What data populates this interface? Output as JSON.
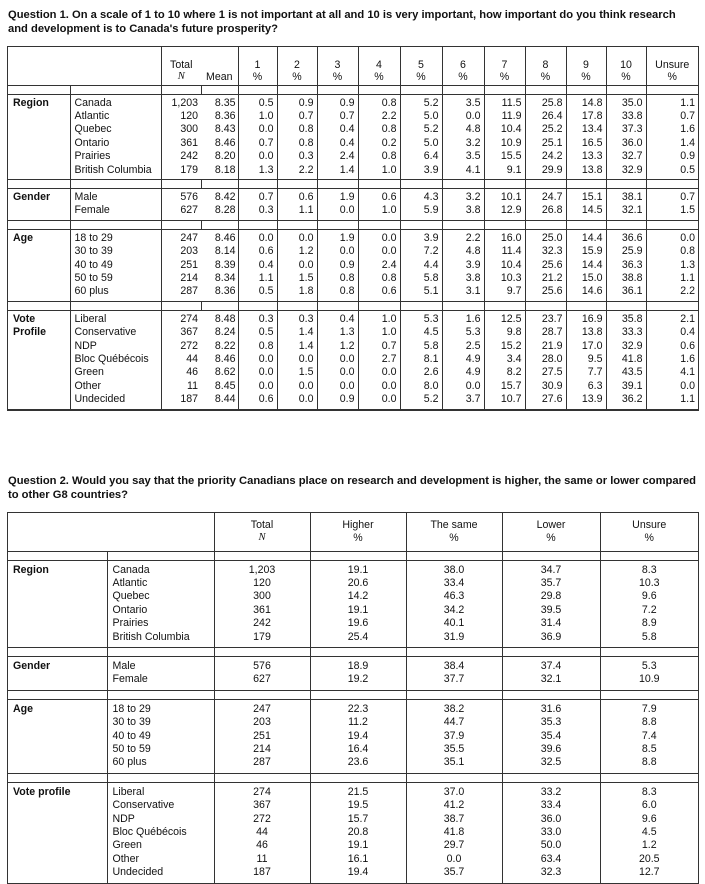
{
  "q1": {
    "title": "Question 1. On a scale of 1 to 10 where 1 is not important at all and 10 is very important, how important do you think research and development is to Canada's future prosperity?",
    "headers": [
      {
        "top": "Total",
        "sub": "N"
      },
      {
        "top": "",
        "sub": "Mean"
      },
      {
        "top": "1",
        "sub": "%"
      },
      {
        "top": "2",
        "sub": "%"
      },
      {
        "top": "3",
        "sub": "%"
      },
      {
        "top": "4",
        "sub": "%"
      },
      {
        "top": "5",
        "sub": "%"
      },
      {
        "top": "6",
        "sub": "%"
      },
      {
        "top": "7",
        "sub": "%"
      },
      {
        "top": "8",
        "sub": "%"
      },
      {
        "top": "9",
        "sub": "%"
      },
      {
        "top": "10",
        "sub": "%"
      },
      {
        "top": "Unsure",
        "sub": "%"
      }
    ],
    "groups": [
      {
        "category": "Region",
        "labels": [
          "Canada",
          "Atlantic",
          "Quebec",
          "Ontario",
          "Prairies",
          "British Columbia"
        ],
        "columns": [
          [
            "1,203",
            "120",
            "300",
            "361",
            "242",
            "179"
          ],
          [
            "8.35",
            "8.36",
            "8.43",
            "8.46",
            "8.20",
            "8.18"
          ],
          [
            "0.5",
            "1.0",
            "0.0",
            "0.7",
            "0.0",
            "1.3"
          ],
          [
            "0.9",
            "0.7",
            "0.8",
            "0.8",
            "0.3",
            "2.2"
          ],
          [
            "0.9",
            "0.7",
            "0.4",
            "0.4",
            "2.4",
            "1.4"
          ],
          [
            "0.8",
            "2.2",
            "0.8",
            "0.2",
            "0.8",
            "1.0"
          ],
          [
            "5.2",
            "5.0",
            "5.2",
            "5.0",
            "6.4",
            "3.9"
          ],
          [
            "3.5",
            "0.0",
            "4.8",
            "3.2",
            "3.5",
            "4.1"
          ],
          [
            "11.5",
            "11.9",
            "10.4",
            "10.9",
            "15.5",
            "9.1"
          ],
          [
            "25.8",
            "26.4",
            "25.2",
            "25.1",
            "24.2",
            "29.9"
          ],
          [
            "14.8",
            "17.8",
            "13.4",
            "16.5",
            "13.3",
            "13.8"
          ],
          [
            "35.0",
            "33.8",
            "37.3",
            "36.0",
            "32.7",
            "32.9"
          ],
          [
            "1.1",
            "0.7",
            "1.6",
            "1.4",
            "0.9",
            "0.5"
          ]
        ]
      },
      {
        "category": "Gender",
        "labels": [
          "Male",
          "Female"
        ],
        "columns": [
          [
            "576",
            "627"
          ],
          [
            "8.42",
            "8.28"
          ],
          [
            "0.7",
            "0.3"
          ],
          [
            "0.6",
            "1.1"
          ],
          [
            "1.9",
            "0.0"
          ],
          [
            "0.6",
            "1.0"
          ],
          [
            "4.3",
            "5.9"
          ],
          [
            "3.2",
            "3.8"
          ],
          [
            "10.1",
            "12.9"
          ],
          [
            "24.7",
            "26.8"
          ],
          [
            "15.1",
            "14.5"
          ],
          [
            "38.1",
            "32.1"
          ],
          [
            "0.7",
            "1.5"
          ]
        ]
      },
      {
        "category": "Age",
        "labels": [
          "18 to 29",
          "30 to 39",
          "40 to 49",
          "50 to 59",
          "60 plus"
        ],
        "columns": [
          [
            "247",
            "203",
            "251",
            "214",
            "287"
          ],
          [
            "8.46",
            "8.14",
            "8.39",
            "8.34",
            "8.36"
          ],
          [
            "0.0",
            "0.6",
            "0.4",
            "1.1",
            "0.5"
          ],
          [
            "0.0",
            "1.2",
            "0.0",
            "1.5",
            "1.8"
          ],
          [
            "1.9",
            "0.0",
            "0.9",
            "0.8",
            "0.8"
          ],
          [
            "0.0",
            "0.0",
            "2.4",
            "0.8",
            "0.6"
          ],
          [
            "3.9",
            "7.2",
            "4.4",
            "5.8",
            "5.1"
          ],
          [
            "2.2",
            "4.8",
            "3.9",
            "3.8",
            "3.1"
          ],
          [
            "16.0",
            "11.4",
            "10.4",
            "10.3",
            "9.7"
          ],
          [
            "25.0",
            "32.3",
            "25.6",
            "21.2",
            "25.6"
          ],
          [
            "14.4",
            "15.9",
            "14.4",
            "15.0",
            "14.6"
          ],
          [
            "36.6",
            "25.9",
            "36.3",
            "38.8",
            "36.1"
          ],
          [
            "0.0",
            "0.8",
            "1.3",
            "1.1",
            "2.2"
          ]
        ]
      },
      {
        "category": "Vote Profile",
        "labels": [
          "Liberal",
          "Conservative",
          "NDP",
          "Bloc Québécois",
          "Green",
          "Other",
          "Undecided"
        ],
        "columns": [
          [
            "274",
            "367",
            "272",
            "44",
            "46",
            "11",
            "187"
          ],
          [
            "8.48",
            "8.24",
            "8.22",
            "8.46",
            "8.62",
            "8.45",
            "8.44"
          ],
          [
            "0.3",
            "0.5",
            "0.8",
            "0.0",
            "0.0",
            "0.0",
            "0.6"
          ],
          [
            "0.3",
            "1.4",
            "1.4",
            "0.0",
            "1.5",
            "0.0",
            "0.0"
          ],
          [
            "0.4",
            "1.3",
            "1.2",
            "0.0",
            "0.0",
            "0.0",
            "0.9"
          ],
          [
            "1.0",
            "1.0",
            "0.7",
            "2.7",
            "0.0",
            "0.0",
            "0.0"
          ],
          [
            "5.3",
            "4.5",
            "5.8",
            "8.1",
            "2.6",
            "8.0",
            "5.2"
          ],
          [
            "1.6",
            "5.3",
            "2.5",
            "4.9",
            "4.9",
            "0.0",
            "3.7"
          ],
          [
            "12.5",
            "9.8",
            "15.2",
            "3.4",
            "8.2",
            "15.7",
            "10.7"
          ],
          [
            "23.7",
            "28.7",
            "21.9",
            "28.0",
            "27.5",
            "30.9",
            "27.6"
          ],
          [
            "16.9",
            "13.8",
            "17.0",
            "9.5",
            "7.7",
            "6.3",
            "13.9"
          ],
          [
            "35.8",
            "33.3",
            "32.9",
            "41.8",
            "43.5",
            "39.1",
            "36.2"
          ],
          [
            "2.1",
            "0.4",
            "0.6",
            "1.6",
            "4.1",
            "0.0",
            "1.1"
          ]
        ]
      }
    ]
  },
  "q2": {
    "title": "Question 2. Would you say that the priority Canadians place on research and development is higher, the same or lower compared to other G8 countries?",
    "headers": [
      {
        "top": "Total",
        "sub": "N"
      },
      {
        "top": "Higher",
        "sub": "%"
      },
      {
        "top": "The same",
        "sub": "%"
      },
      {
        "top": "Lower",
        "sub": "%"
      },
      {
        "top": "Unsure",
        "sub": "%"
      }
    ],
    "groups": [
      {
        "category": "Region",
        "labels": [
          "Canada",
          "Atlantic",
          "Quebec",
          "Ontario",
          "Prairies",
          "British Columbia"
        ],
        "columns": [
          [
            "1,203",
            "120",
            "300",
            "361",
            "242",
            "179"
          ],
          [
            "19.1",
            "20.6",
            "14.2",
            "19.1",
            "19.6",
            "25.4"
          ],
          [
            "38.0",
            "33.4",
            "46.3",
            "34.2",
            "40.1",
            "31.9"
          ],
          [
            "34.7",
            "35.7",
            "29.8",
            "39.5",
            "31.4",
            "36.9"
          ],
          [
            "8.3",
            "10.3",
            "9.6",
            "7.2",
            "8.9",
            "5.8"
          ]
        ]
      },
      {
        "category": "Gender",
        "labels": [
          "Male",
          "Female"
        ],
        "columns": [
          [
            "576",
            "627"
          ],
          [
            "18.9",
            "19.2"
          ],
          [
            "38.4",
            "37.7"
          ],
          [
            "37.4",
            "32.1"
          ],
          [
            "5.3",
            "10.9"
          ]
        ]
      },
      {
        "category": "Age",
        "labels": [
          "18 to 29",
          "30 to 39",
          "40 to 49",
          "50 to 59",
          "60 plus"
        ],
        "columns": [
          [
            "247",
            "203",
            "251",
            "214",
            "287"
          ],
          [
            "22.3",
            "11.2",
            "19.4",
            "16.4",
            "23.6"
          ],
          [
            "38.2",
            "44.7",
            "37.9",
            "35.5",
            "35.1"
          ],
          [
            "31.6",
            "35.3",
            "35.4",
            "39.6",
            "32.5"
          ],
          [
            "7.9",
            "8.8",
            "7.4",
            "8.5",
            "8.8"
          ]
        ]
      },
      {
        "category": "Vote profile",
        "labels": [
          "Liberal",
          "Conservative",
          "NDP",
          "Bloc Québécois",
          "Green",
          "Other",
          "Undecided"
        ],
        "columns": [
          [
            "274",
            "367",
            "272",
            "44",
            "46",
            "11",
            "187"
          ],
          [
            "21.5",
            "19.5",
            "15.7",
            "20.8",
            "19.1",
            "16.1",
            "19.4"
          ],
          [
            "37.0",
            "41.2",
            "38.7",
            "41.8",
            "29.7",
            "0.0",
            "35.7"
          ],
          [
            "33.2",
            "33.4",
            "36.0",
            "33.0",
            "50.0",
            "63.4",
            "32.3"
          ],
          [
            "8.3",
            "6.0",
            "9.6",
            "4.5",
            "1.2",
            "20.5",
            "12.7"
          ]
        ]
      }
    ]
  }
}
